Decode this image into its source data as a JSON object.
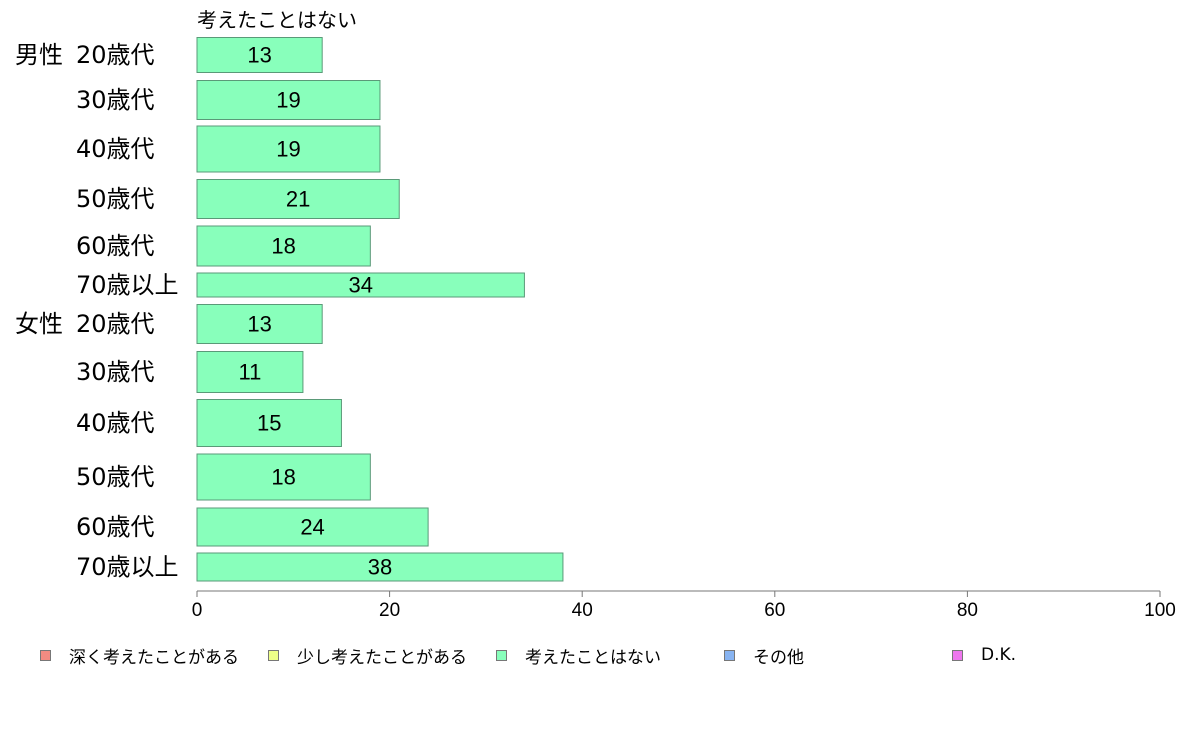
{
  "chart_data": {
    "type": "bar",
    "orientation": "horizontal",
    "title": "考えたことはない",
    "categories": [
      {
        "group": "男性",
        "label": "20歳代"
      },
      {
        "group": "",
        "label": "30歳代"
      },
      {
        "group": "",
        "label": "40歳代"
      },
      {
        "group": "",
        "label": "50歳代"
      },
      {
        "group": "",
        "label": "60歳代"
      },
      {
        "group": "",
        "label": "70歳以上"
      },
      {
        "group": "女性",
        "label": "20歳代"
      },
      {
        "group": "",
        "label": "30歳代"
      },
      {
        "group": "",
        "label": "40歳代"
      },
      {
        "group": "",
        "label": "50歳代"
      },
      {
        "group": "",
        "label": "60歳代"
      },
      {
        "group": "",
        "label": "70歳以上"
      }
    ],
    "series": [
      {
        "name": "考えたことはない",
        "color": "#88ffbb",
        "values": [
          13,
          19,
          19,
          21,
          18,
          34,
          13,
          11,
          15,
          18,
          24,
          38
        ]
      }
    ],
    "xlim": [
      0,
      100
    ],
    "xticks": [
      0,
      20,
      40,
      60,
      80,
      100
    ],
    "grid": false,
    "legend_position": "bottom",
    "legend": [
      {
        "label": "深く考えたことがある",
        "color": "#f28b82"
      },
      {
        "label": "少し考えたことがある",
        "color": "#eeff88"
      },
      {
        "label": "考えたことはない",
        "color": "#88ffbb"
      },
      {
        "label": "その他",
        "color": "#88b4f2"
      },
      {
        "label": "D.K.",
        "color": "#ee77ee"
      }
    ]
  }
}
